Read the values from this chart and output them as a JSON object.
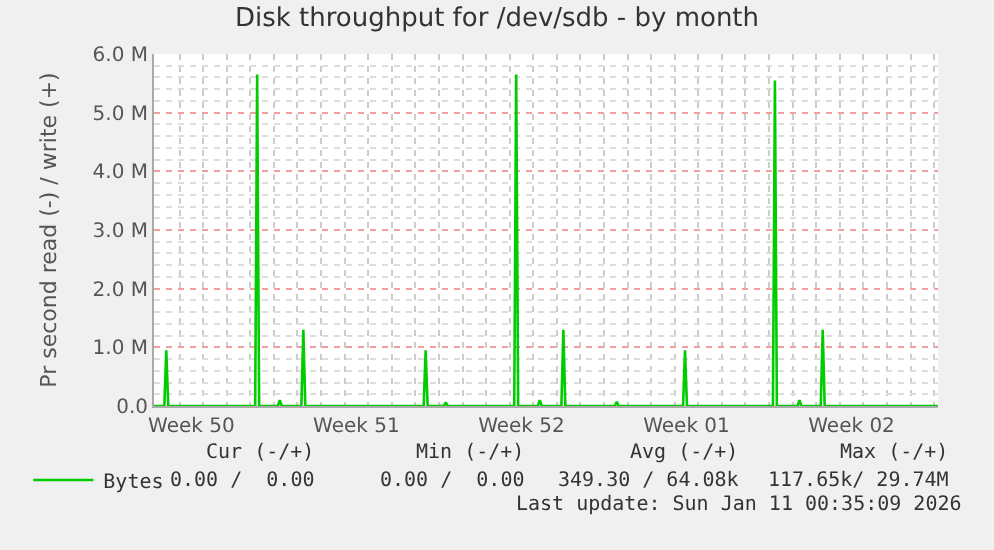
{
  "chart_data": {
    "type": "line",
    "title": "Disk throughput for /dev/sdb - by month",
    "ylabel": "Pr second read (-) / write (+)",
    "x": [
      "2025-12-09T22:00",
      "2025-12-10T08:30",
      "2025-12-10T10:30",
      "2025-12-10T12:30",
      "2025-12-14T05:00",
      "2025-12-14T07:00",
      "2025-12-14T09:00",
      "2025-12-15T04:00",
      "2025-12-15T06:00",
      "2025-12-15T08:00",
      "2025-12-16T04:00",
      "2025-12-16T06:00",
      "2025-12-16T08:00",
      "2025-12-21T08:30",
      "2025-12-21T10:30",
      "2025-12-21T12:30",
      "2025-12-22T05:00",
      "2025-12-22T07:00",
      "2025-12-22T09:00",
      "2025-12-25T04:40",
      "2025-12-25T06:40",
      "2025-12-25T08:40",
      "2025-12-26T04:40",
      "2025-12-26T06:40",
      "2025-12-26T08:40",
      "2025-12-27T04:40",
      "2025-12-27T06:40",
      "2025-12-27T08:40",
      "2025-12-29T11:00",
      "2025-12-29T13:00",
      "2025-12-29T15:00",
      "2026-01-01T08:30",
      "2026-01-01T10:30",
      "2026-01-01T12:30",
      "2026-01-05T04:00",
      "2026-01-05T06:00",
      "2026-01-05T08:00",
      "2026-01-06T05:00",
      "2026-01-06T07:00",
      "2026-01-06T09:00",
      "2026-01-07T04:40",
      "2026-01-07T06:40",
      "2026-01-07T08:40",
      "2026-01-12T04:00"
    ],
    "series": [
      {
        "name": "Bytes",
        "color": "#00cc00",
        "values": [
          0,
          0,
          950000,
          0,
          0,
          5650000,
          0,
          0,
          100000,
          0,
          0,
          1300000,
          0,
          0,
          950000,
          0,
          0,
          60000,
          0,
          0,
          5650000,
          0,
          0,
          100000,
          0,
          0,
          1300000,
          0,
          0,
          70000,
          0,
          0,
          950000,
          0,
          0,
          5550000,
          0,
          0,
          100000,
          0,
          0,
          1300000,
          0,
          0
        ]
      }
    ],
    "xlim": [
      "2025-12-09T22:00",
      "2026-01-12T04:00"
    ],
    "xticks": [
      {
        "value": "2025-12-11T12:00",
        "label": "Week 50"
      },
      {
        "value": "2025-12-18T12:00",
        "label": "Week 51"
      },
      {
        "value": "2025-12-25T12:00",
        "label": "Week 52"
      },
      {
        "value": "2026-01-01T12:00",
        "label": "Week 01"
      },
      {
        "value": "2026-01-08T12:00",
        "label": "Week 02"
      }
    ],
    "ylim": [
      0,
      6000000
    ],
    "yticks": [
      {
        "value": 0,
        "label": "0.0"
      },
      {
        "value": 1000000,
        "label": "1.0 M"
      },
      {
        "value": 2000000,
        "label": "2.0 M"
      },
      {
        "value": 3000000,
        "label": "3.0 M"
      },
      {
        "value": 4000000,
        "label": "4.0 M"
      },
      {
        "value": 5000000,
        "label": "5.0 M"
      },
      {
        "value": 6000000,
        "label": "6.0 M"
      }
    ],
    "grid": true,
    "legend": "bottom left",
    "annotations": [
      "Cur (-/+)",
      "Min (-/+)",
      "Avg (-/+)",
      "Max (-/+)",
      "0.00 /  0.00",
      "0.00 /  0.00",
      "349.30 / 64.08k",
      "117.65k/ 29.74M",
      "Last update: Sun Jan 11 00:35:09 2026"
    ]
  }
}
